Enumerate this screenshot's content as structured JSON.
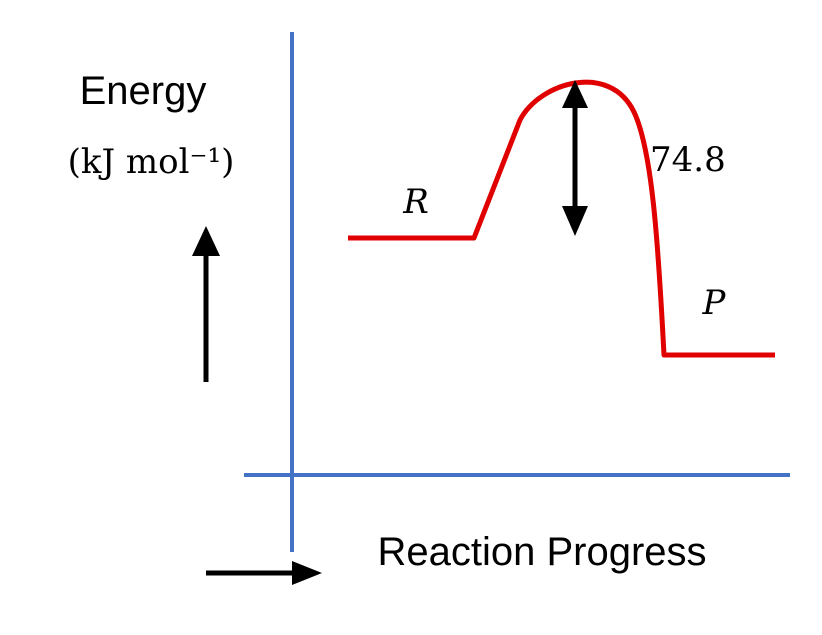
{
  "y_axis": {
    "title": "Energy",
    "units": "(kJ mol⁻¹)"
  },
  "x_axis": {
    "title": "Reaction Progress"
  },
  "curve": {
    "reactant_label": "R",
    "product_label": "P",
    "barrier_value": "74.8"
  },
  "colors": {
    "axes": "#4472C4",
    "curve": "#E00000",
    "arrows": "#000000"
  }
}
